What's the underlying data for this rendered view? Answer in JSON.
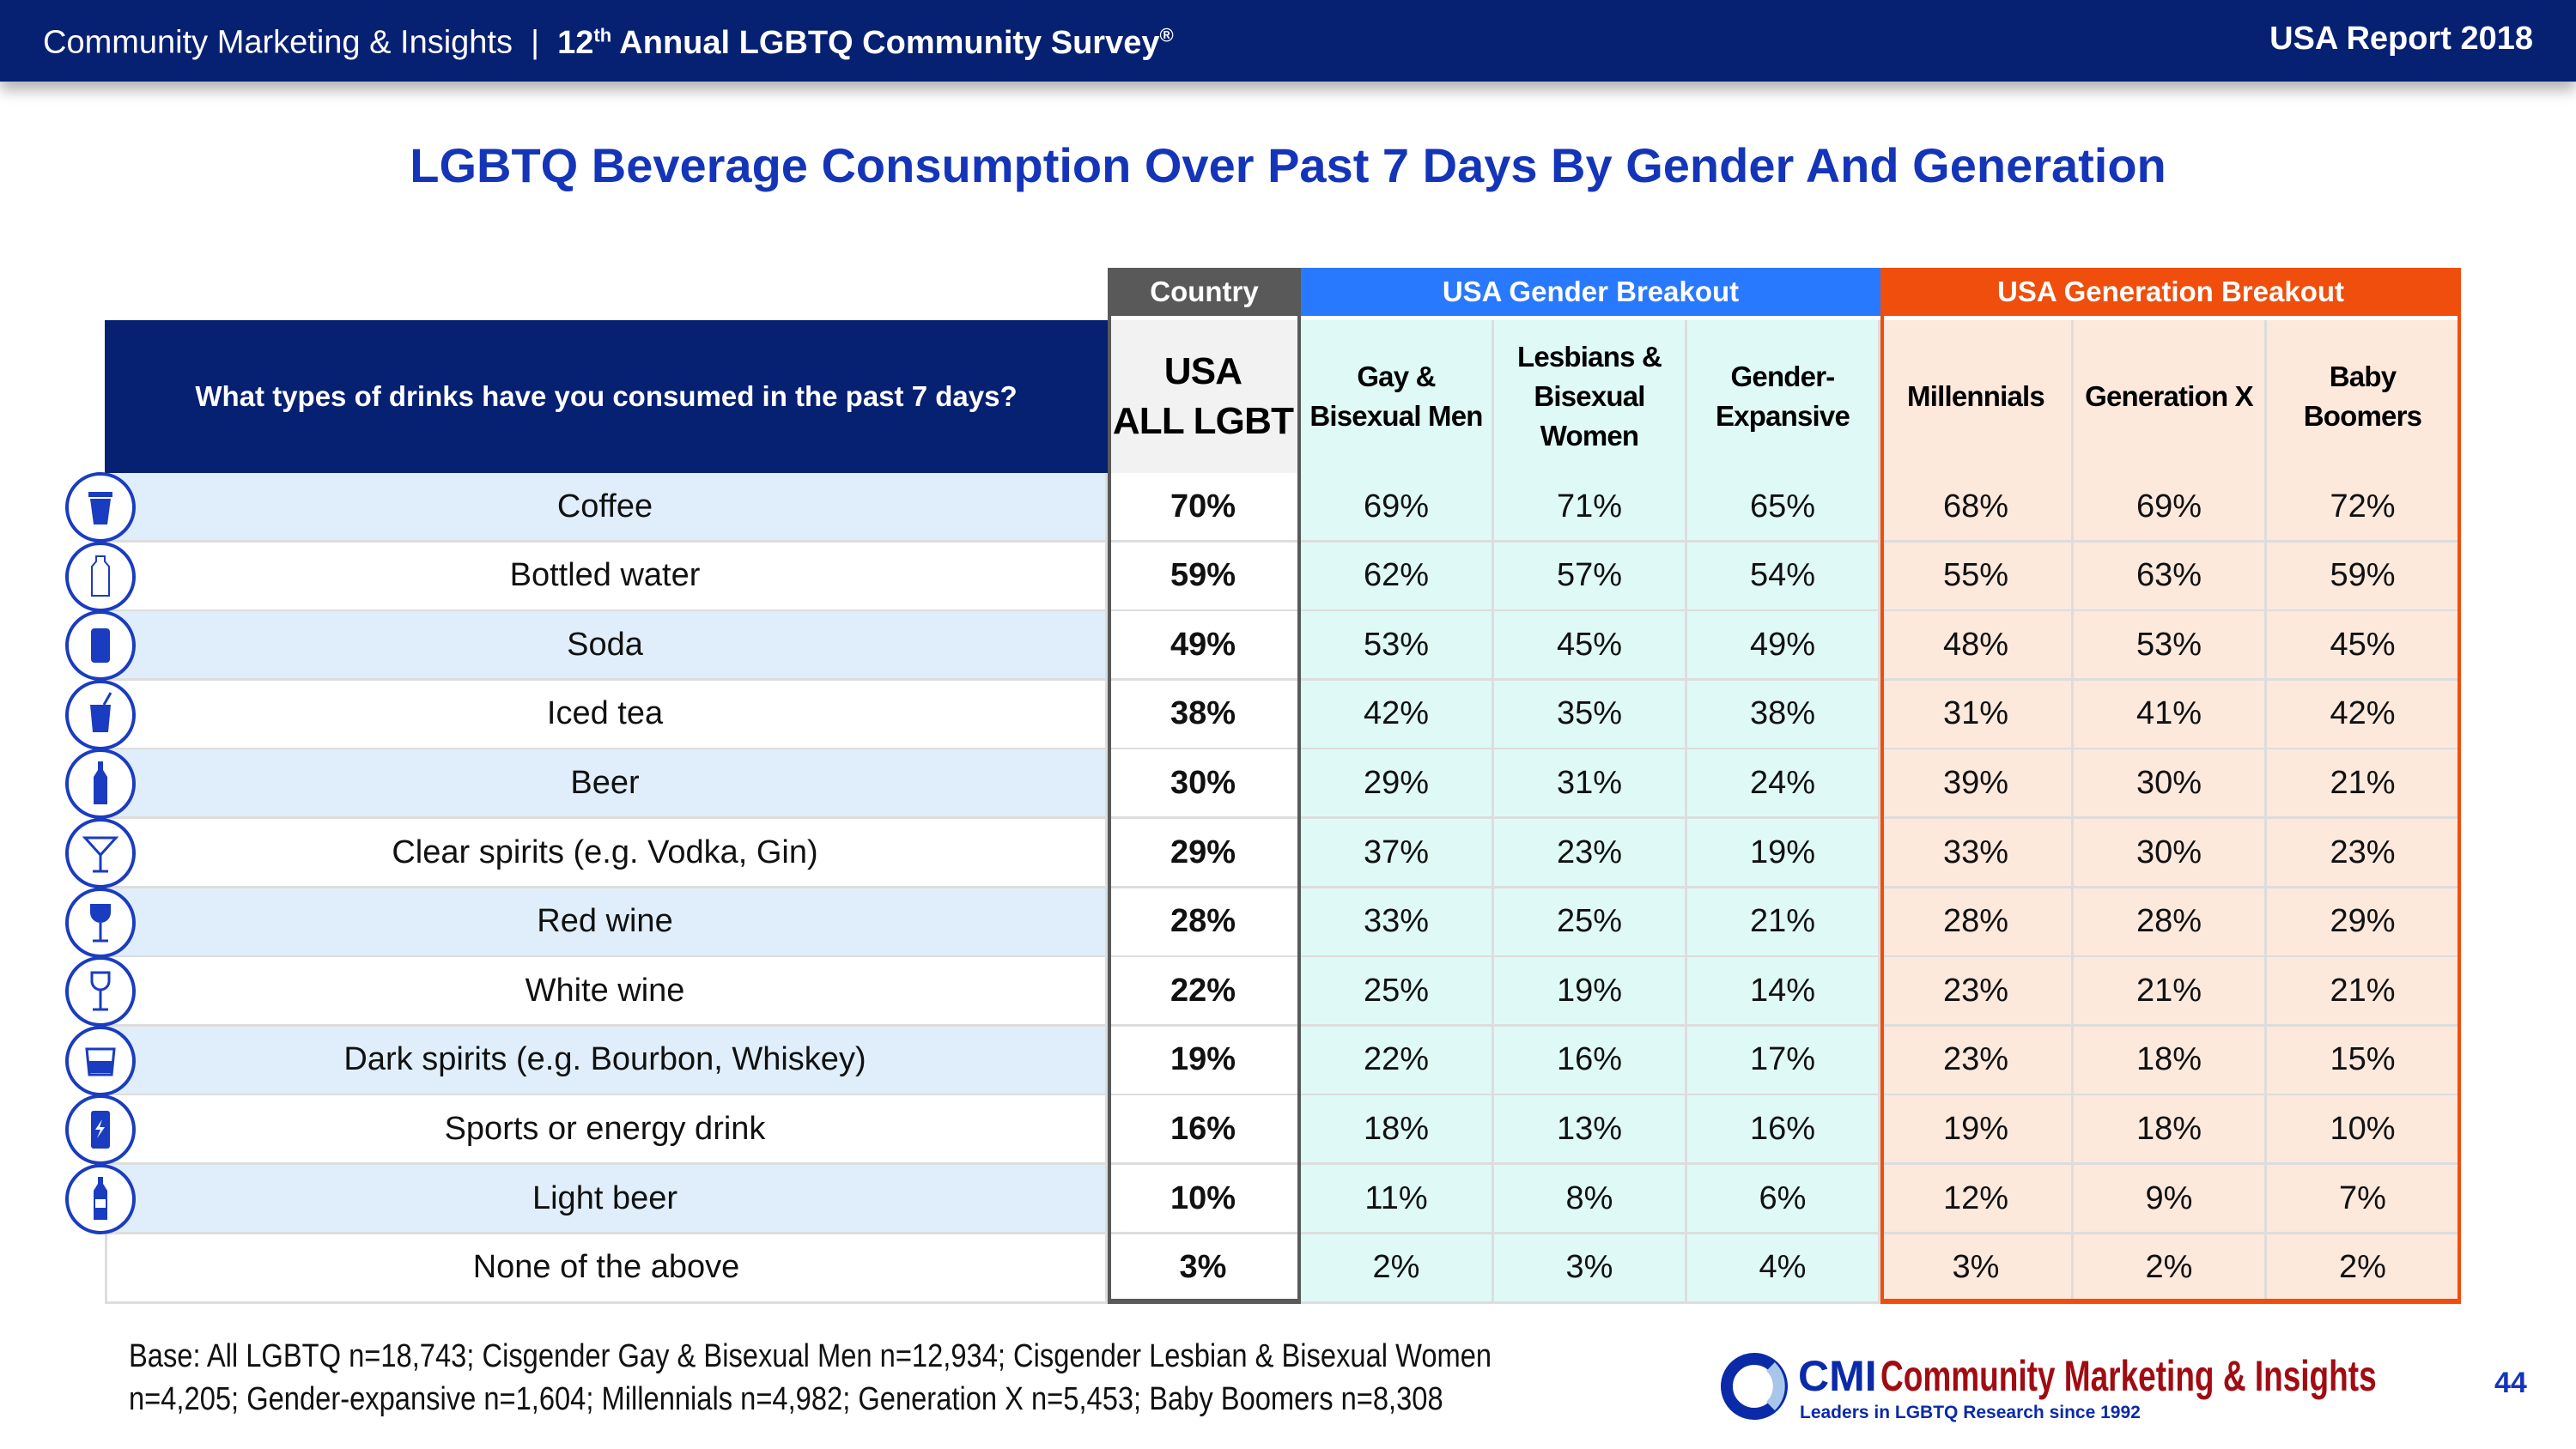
{
  "header": {
    "brand": "Community Marketing & Insights",
    "separator": "|",
    "survey_num": "12",
    "survey_sup": "th",
    "survey_rest": " Annual LGBTQ Community Survey",
    "reg": "®",
    "report": "USA Report 2018"
  },
  "title": "LGBTQ Beverage Consumption Over Past 7 Days By Gender And Generation",
  "groups": {
    "country": "Country",
    "gender": "USA Gender Breakout",
    "generation": "USA Generation Breakout"
  },
  "colors": {
    "navy": "#062072",
    "country": "#595959",
    "gender": "#2979ff",
    "generation": "#f04e0c",
    "label_alt": "#dfeefa",
    "gender_bg": "#dffaf6",
    "generation_bg": "#fde8dc",
    "logo_red": "#a00c12"
  },
  "question": "What types of drinks have you consumed in the past 7 days?",
  "columns": [
    "USA ALL LGBT",
    "Gay & Bisexual Men",
    "Lesbians & Bisexual Women",
    "Gender-Expansive",
    "Millennials",
    "Generation X",
    "Baby Boomers"
  ],
  "rows": [
    {
      "label": "Coffee",
      "icon": "coffee-cup-icon",
      "values": [
        "70%",
        "69%",
        "71%",
        "65%",
        "68%",
        "69%",
        "72%"
      ]
    },
    {
      "label": "Bottled water",
      "icon": "water-bottle-icon",
      "values": [
        "59%",
        "62%",
        "57%",
        "54%",
        "55%",
        "63%",
        "59%"
      ]
    },
    {
      "label": "Soda",
      "icon": "soda-can-icon",
      "values": [
        "49%",
        "53%",
        "45%",
        "49%",
        "48%",
        "53%",
        "45%"
      ]
    },
    {
      "label": "Iced tea",
      "icon": "iced-tea-icon",
      "values": [
        "38%",
        "42%",
        "35%",
        "38%",
        "31%",
        "41%",
        "42%"
      ]
    },
    {
      "label": "Beer",
      "icon": "beer-bottle-icon",
      "values": [
        "30%",
        "29%",
        "31%",
        "24%",
        "39%",
        "30%",
        "21%"
      ]
    },
    {
      "label": "Clear spirits (e.g. Vodka, Gin)",
      "icon": "martini-glass-icon",
      "values": [
        "29%",
        "37%",
        "23%",
        "19%",
        "33%",
        "30%",
        "23%"
      ]
    },
    {
      "label": "Red wine",
      "icon": "red-wine-glass-icon",
      "values": [
        "28%",
        "33%",
        "25%",
        "21%",
        "28%",
        "28%",
        "29%"
      ]
    },
    {
      "label": "White wine",
      "icon": "white-wine-glass-icon",
      "values": [
        "22%",
        "25%",
        "19%",
        "14%",
        "23%",
        "21%",
        "21%"
      ]
    },
    {
      "label": "Dark spirits (e.g. Bourbon, Whiskey)",
      "icon": "whiskey-glass-icon",
      "values": [
        "19%",
        "22%",
        "16%",
        "17%",
        "23%",
        "18%",
        "15%"
      ]
    },
    {
      "label": "Sports or energy drink",
      "icon": "energy-drink-icon",
      "values": [
        "16%",
        "18%",
        "13%",
        "16%",
        "19%",
        "18%",
        "10%"
      ]
    },
    {
      "label": "Light beer",
      "icon": "light-beer-icon",
      "values": [
        "10%",
        "11%",
        "8%",
        "6%",
        "12%",
        "9%",
        "7%"
      ]
    },
    {
      "label": "None of the above",
      "icon": "",
      "values": [
        "3%",
        "2%",
        "3%",
        "4%",
        "3%",
        "2%",
        "2%"
      ]
    }
  ],
  "footer": {
    "base_line1": "Base: All LGBTQ n=18,743; Cisgender Gay & Bisexual Men n=12,934; Cisgender Lesbian & Bisexual Women",
    "base_line2": "n=4,205; Gender-expansive n=1,604; Millennials n=4,982; Generation X n=5,453; Baby Boomers n=8,308",
    "logo_abbr": "CMI",
    "logo_name": "Community Marketing & Insights",
    "logo_tagline": "Leaders in LGBTQ Research since 1992",
    "page": "44"
  }
}
